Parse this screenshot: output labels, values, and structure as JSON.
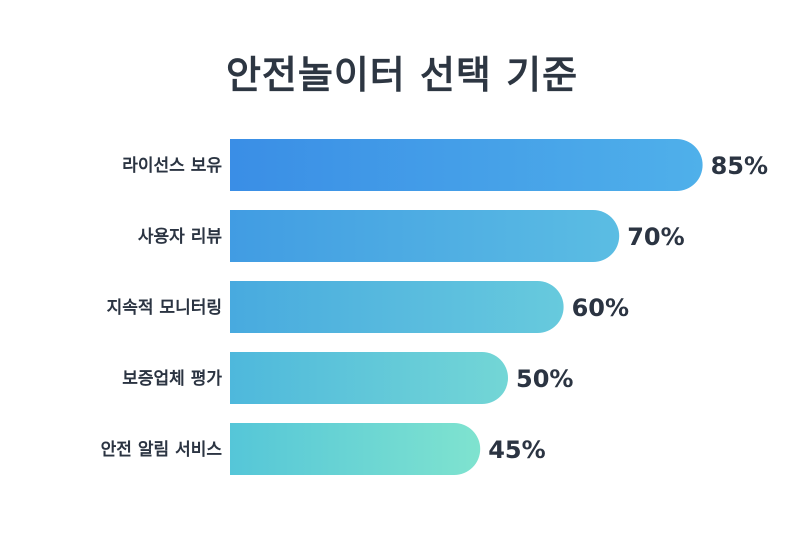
{
  "chart_data": {
    "type": "bar",
    "orientation": "horizontal",
    "title": "안전놀이터 선택 기준",
    "categories": [
      "라이선스 보유",
      "사용자 리뷰",
      "지속적 모니터링",
      "보증업체 평가",
      "안전 알림 서비스"
    ],
    "values": [
      85,
      70,
      60,
      50,
      45
    ],
    "value_labels": [
      "85%",
      "70%",
      "60%",
      "50%",
      "45%"
    ],
    "unit": "%",
    "xlim": [
      0,
      100
    ],
    "grid": false,
    "legend": "none",
    "colors": {
      "gradient_top_left": "#3a8ee6",
      "gradient_top_right": "#4fb0ea",
      "gradient_bottom_left": "#55c6d8",
      "gradient_bottom_right": "#7fe3cf"
    }
  }
}
